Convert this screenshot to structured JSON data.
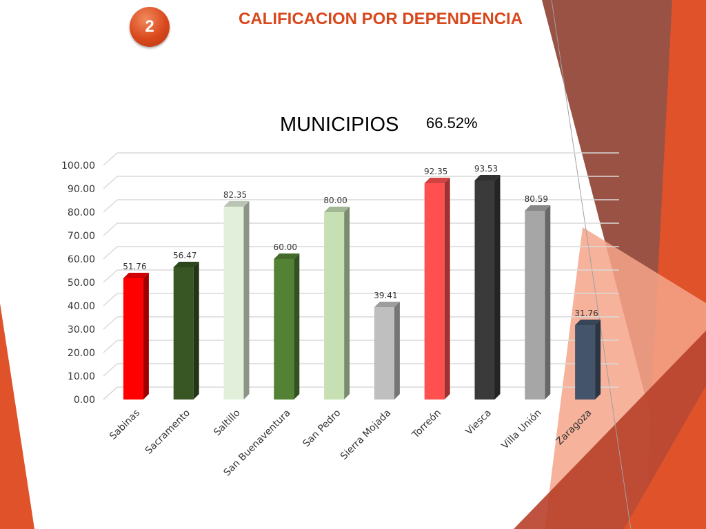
{
  "slide": {
    "number": "2",
    "title": "CALIFICACION POR DEPENDENCIA",
    "percent": "66.52%"
  },
  "colors": {
    "accent": "#d9481c",
    "decor_brown": "#8b3a2a",
    "decor_orange": "#e0532a",
    "decor_salmon": "#f4a58a"
  },
  "chart_data": {
    "type": "bar",
    "title": "MUNICIPIOS",
    "categories": [
      "Sabinas",
      "Sacramento",
      "Saltillo",
      "San Buenaventura",
      "San Pedro",
      "Sierra Mojada",
      "Torreón",
      "Viesca",
      "Villa Unión",
      "Zaragoza"
    ],
    "values": [
      51.76,
      56.47,
      82.35,
      60.0,
      80.0,
      39.41,
      92.35,
      93.53,
      80.59,
      31.76
    ],
    "value_labels": [
      "51.76",
      "56.47",
      "82.35",
      "60.00",
      "80.00",
      "39.41",
      "92.35",
      "93.53",
      "80.59",
      "31.76"
    ],
    "y_ticks": [
      "0.00",
      "10.00",
      "20.00",
      "30.00",
      "40.00",
      "50.00",
      "60.00",
      "70.00",
      "80.00",
      "90.00",
      "100.00"
    ],
    "ylim": [
      0,
      100
    ],
    "grid": true,
    "bar_colors": [
      "#ff0000",
      "#375623",
      "#e2efda",
      "#548235",
      "#c6e0b4",
      "#bfbfbf",
      "#ff5050",
      "#3a3a3a",
      "#a6a6a6",
      "#44546a"
    ]
  }
}
